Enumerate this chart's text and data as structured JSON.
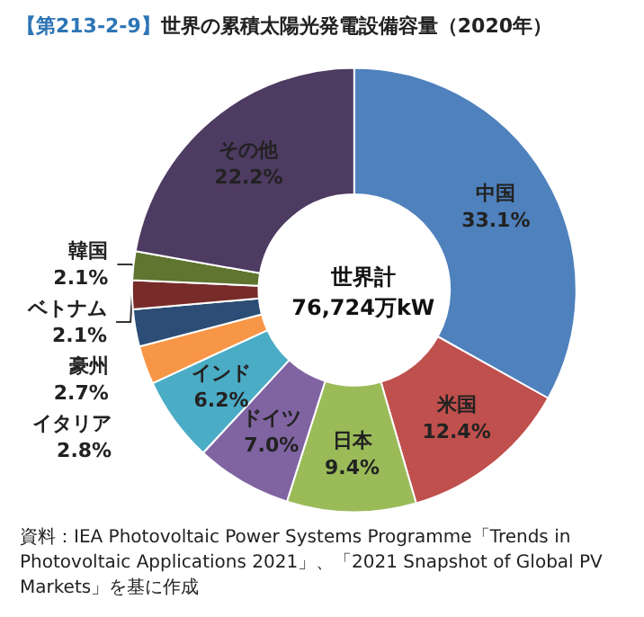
{
  "chart_data": {
    "type": "donut",
    "title": "【第213-2-9】世界の累積太陽光発電設備容量（2020年）",
    "categories": [
      "中国",
      "米国",
      "日本",
      "ドイツ",
      "インド",
      "イタリア",
      "豪州",
      "ベトナム",
      "韓国",
      "その他"
    ],
    "values": [
      33.1,
      12.4,
      9.4,
      7.0,
      6.2,
      2.8,
      2.7,
      2.1,
      2.1,
      22.2
    ],
    "value_labels": [
      "33.1%",
      "12.4%",
      "9.4%",
      "7.0%",
      "6.2%",
      "2.8%",
      "2.7%",
      "2.1%",
      "2.1%",
      "22.2%"
    ],
    "colors": [
      "#4f81bd",
      "#c0504d",
      "#9bbb59",
      "#8064a2",
      "#4bacc6",
      "#f79646",
      "#2c4d75",
      "#772c2a",
      "#5f7530",
      "#4d3b62"
    ],
    "annotations": [
      "世界計",
      "76,724万kW",
      "資料：IEA Photovoltaic Power Systems Programme「Trends in Photovoltaic Applications 2021」、「2021 Snapshot of Global PV Markets」を基に作成"
    ],
    "legend": false
  }
}
